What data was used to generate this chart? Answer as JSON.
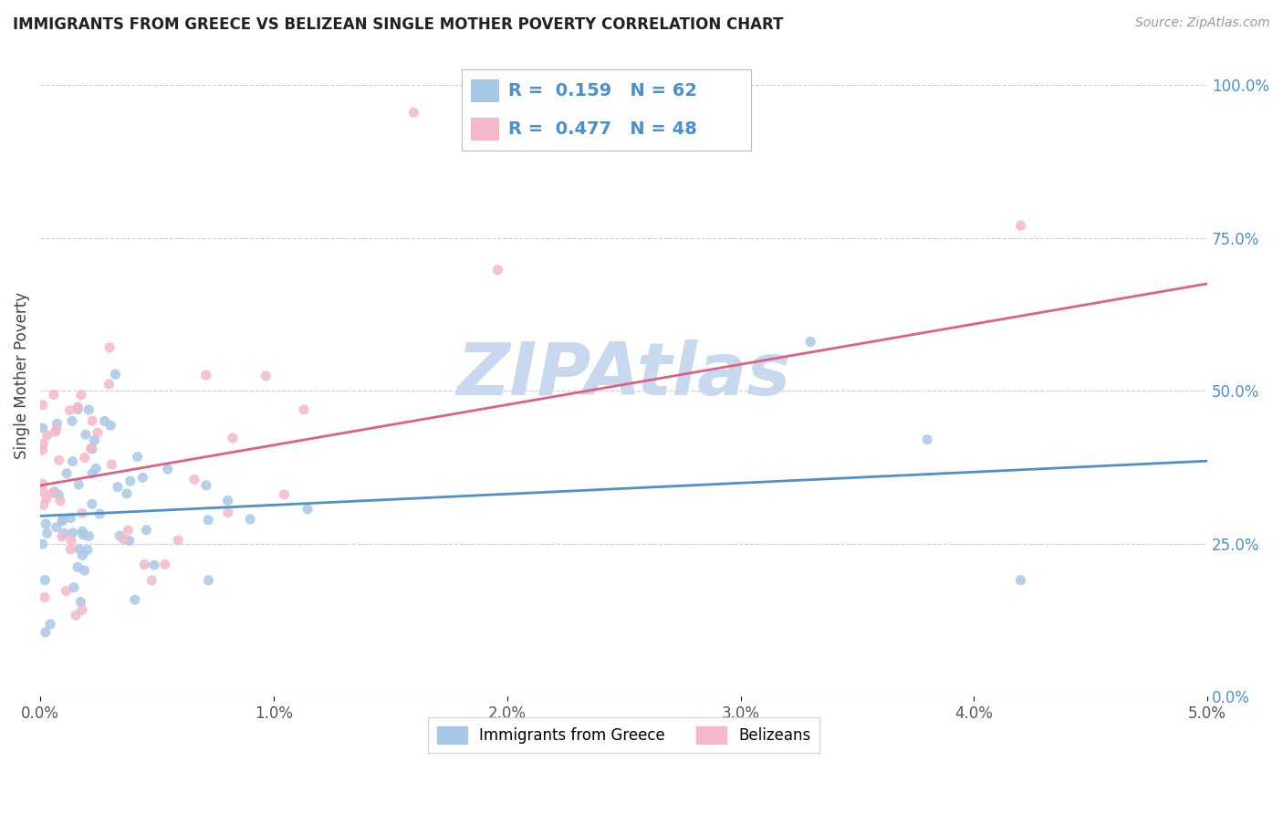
{
  "title": "IMMIGRANTS FROM GREECE VS BELIZEAN SINGLE MOTHER POVERTY CORRELATION CHART",
  "source_text": "Source: ZipAtlas.com",
  "ylabel": "Single Mother Poverty",
  "right_yticks": [
    0.0,
    0.25,
    0.5,
    0.75,
    1.0
  ],
  "right_yticklabels": [
    "0.0%",
    "25.0%",
    "50.0%",
    "75.0%",
    "100.0%"
  ],
  "legend_label_blue": "Immigrants from Greece",
  "legend_label_pink": "Belizeans",
  "R_blue": 0.159,
  "N_blue": 62,
  "R_pink": 0.477,
  "N_pink": 48,
  "blue_color": "#a8c8e8",
  "pink_color": "#f4b8c8",
  "blue_line_color": "#5090c8",
  "pink_line_color": "#e06080",
  "watermark": "ZIPAtlas",
  "watermark_color": "#c8d8ee",
  "background_color": "#ffffff",
  "xlim": [
    0.0,
    0.05
  ],
  "ylim": [
    0.0,
    1.05
  ],
  "blue_line_y0": 0.295,
  "blue_line_y1": 0.385,
  "pink_line_y0": 0.345,
  "pink_line_y1": 0.675
}
